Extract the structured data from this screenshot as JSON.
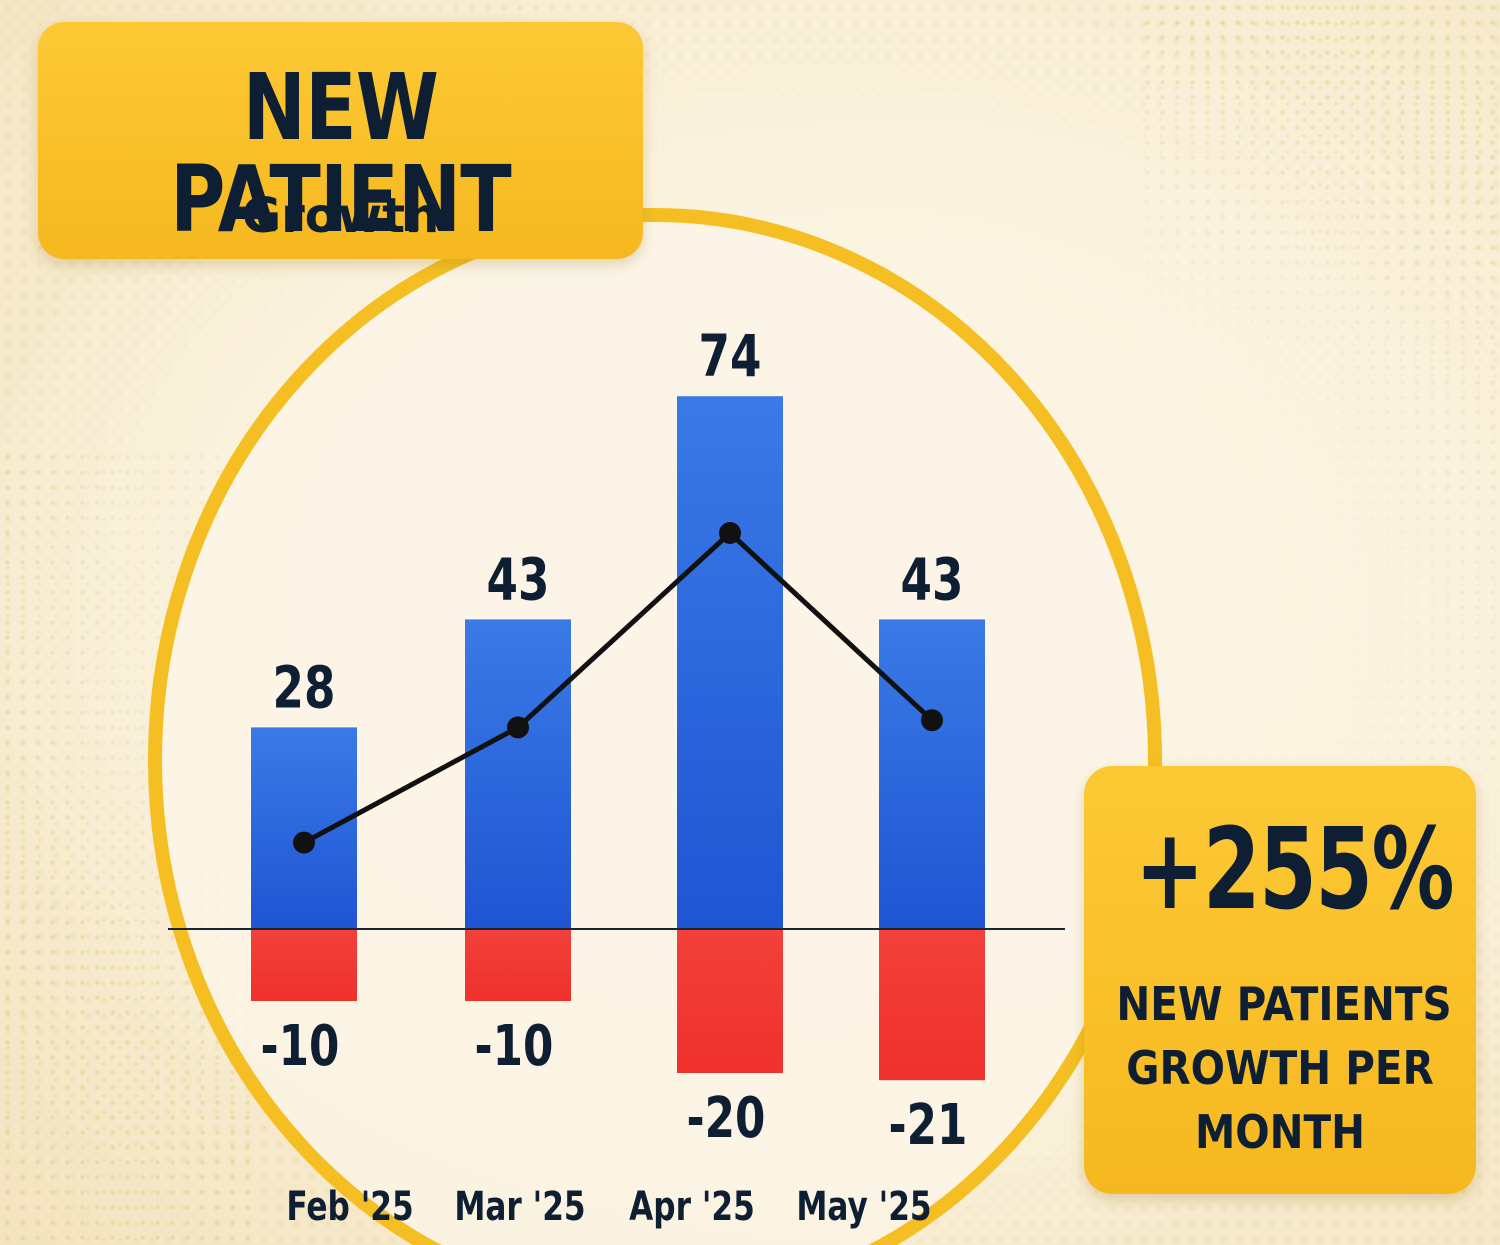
{
  "title": {
    "main": "NEW PATIENT",
    "sub": "Growth"
  },
  "stat": {
    "value": "+255%",
    "label_lines": [
      "NEW PATIENTS",
      "GROWTH PER",
      "MONTH"
    ]
  },
  "colors": {
    "accent": "#f6b81f",
    "positive_bar": "#1f55d3",
    "negative_bar": "#f0312c",
    "line": "#111111",
    "text": "#0f1f33"
  },
  "chart_data": {
    "type": "bar",
    "categories": [
      "Feb '25",
      "Mar '25",
      "Apr '25",
      "May '25"
    ],
    "series": [
      {
        "values": [
          28,
          43,
          74,
          43
        ]
      },
      {
        "values": [
          -10,
          -10,
          -20,
          -21
        ]
      }
    ],
    "line_series": {
      "values": [
        12,
        28,
        55,
        29
      ]
    },
    "ylim": [
      -26,
      80
    ]
  }
}
